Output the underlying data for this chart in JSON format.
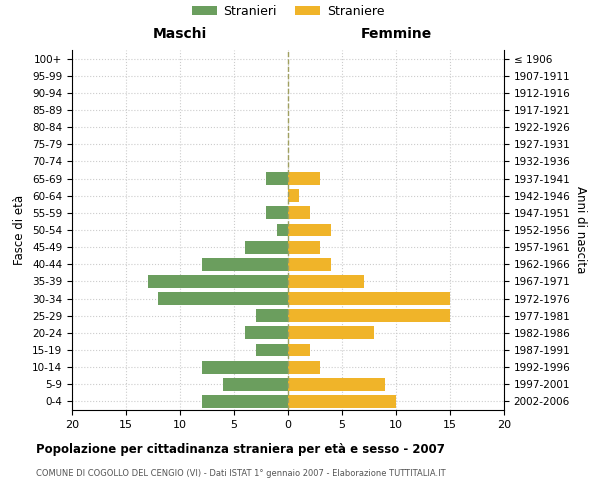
{
  "age_groups": [
    "0-4",
    "5-9",
    "10-14",
    "15-19",
    "20-24",
    "25-29",
    "30-34",
    "35-39",
    "40-44",
    "45-49",
    "50-54",
    "55-59",
    "60-64",
    "65-69",
    "70-74",
    "75-79",
    "80-84",
    "85-89",
    "90-94",
    "95-99",
    "100+"
  ],
  "birth_years": [
    "2002-2006",
    "1997-2001",
    "1992-1996",
    "1987-1991",
    "1982-1986",
    "1977-1981",
    "1972-1976",
    "1967-1971",
    "1962-1966",
    "1957-1961",
    "1952-1956",
    "1947-1951",
    "1942-1946",
    "1937-1941",
    "1932-1936",
    "1927-1931",
    "1922-1926",
    "1917-1921",
    "1912-1916",
    "1907-1911",
    "≤ 1906"
  ],
  "maschi": [
    8,
    6,
    8,
    3,
    4,
    3,
    12,
    13,
    8,
    4,
    1,
    2,
    0,
    2,
    0,
    0,
    0,
    0,
    0,
    0,
    0
  ],
  "femmine": [
    10,
    9,
    3,
    2,
    8,
    15,
    15,
    7,
    4,
    3,
    4,
    2,
    1,
    3,
    0,
    0,
    0,
    0,
    0,
    0,
    0
  ],
  "maschi_color": "#6b9e5e",
  "femmine_color": "#f0b429",
  "background_color": "#ffffff",
  "grid_color": "#cccccc",
  "title": "Popolazione per cittadinanza straniera per età e sesso - 2007",
  "subtitle": "COMUNE DI COGOLLO DEL CENGIO (VI) - Dati ISTAT 1° gennaio 2007 - Elaborazione TUTTITALIA.IT",
  "xlabel_left": "Maschi",
  "xlabel_right": "Femmine",
  "ylabel_left": "Fasce di età",
  "ylabel_right": "Anni di nascita",
  "xlim": 20,
  "legend_stranieri": "Stranieri",
  "legend_straniere": "Straniere",
  "centerline_color": "#a0a060"
}
